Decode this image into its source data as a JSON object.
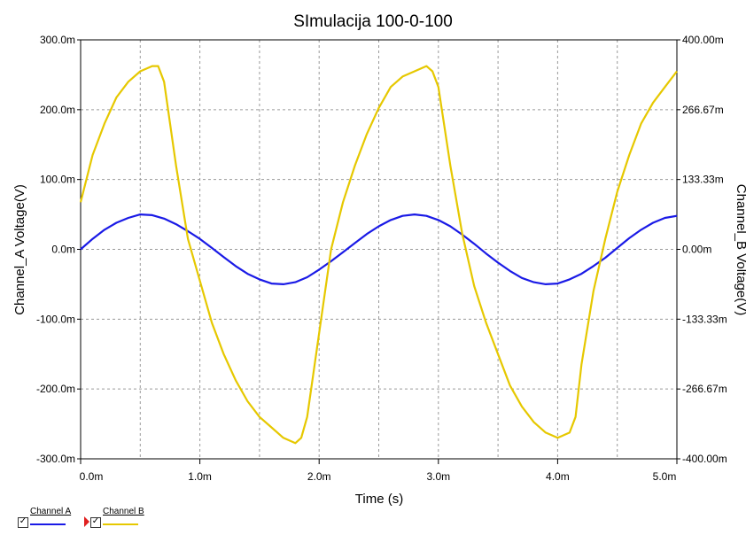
{
  "chart_data": {
    "type": "line",
    "title": "SImulacija 100-0-100",
    "xlabel": "Time (s)",
    "ylabel_left": "Channel_A Voltage(V)",
    "ylabel_right": "Channel_B Voltage(V)",
    "xlim": [
      0,
      0.005
    ],
    "ylim_left": [
      -0.3,
      0.3
    ],
    "ylim_right": [
      -0.4,
      0.4
    ],
    "x_ticks": [
      "0.0m",
      "1.0m",
      "2.0m",
      "3.0m",
      "4.0m",
      "5.0m"
    ],
    "y_ticks_left": [
      "300.0m",
      "200.0m",
      "100.0m",
      "0.0m",
      "-100.0m",
      "-200.0m",
      "-300.0m"
    ],
    "y_ticks_right": [
      "400.00m",
      "266.67m",
      "133.33m",
      "0.00m",
      "-133.33m",
      "-266.67m",
      "-400.00m"
    ],
    "grid": true,
    "legend_position": "bottom-left",
    "series": [
      {
        "name": "Channel A",
        "axis": "left",
        "color": "#1a1ae6",
        "x": [
          0,
          0.0001,
          0.0002,
          0.0003,
          0.0004,
          0.0005,
          0.0006,
          0.0007,
          0.0008,
          0.0009,
          0.001,
          0.0011,
          0.0012,
          0.0013,
          0.0014,
          0.0015,
          0.0016,
          0.0017,
          0.0018,
          0.0019,
          0.002,
          0.0021,
          0.0022,
          0.0023,
          0.0024,
          0.0025,
          0.0026,
          0.0027,
          0.0028,
          0.0029,
          0.003,
          0.0031,
          0.0032,
          0.0033,
          0.0034,
          0.0035,
          0.0036,
          0.0037,
          0.0038,
          0.0039,
          0.004,
          0.0041,
          0.0042,
          0.0043,
          0.0044,
          0.0045,
          0.0046,
          0.0047,
          0.0048,
          0.0049,
          0.005
        ],
        "y": [
          0.0,
          0.015,
          0.028,
          0.038,
          0.045,
          0.05,
          0.049,
          0.044,
          0.036,
          0.026,
          0.015,
          0.002,
          -0.011,
          -0.024,
          -0.035,
          -0.043,
          -0.049,
          -0.05,
          -0.047,
          -0.04,
          -0.029,
          -0.017,
          -0.004,
          0.009,
          0.022,
          0.033,
          0.042,
          0.048,
          0.05,
          0.048,
          0.042,
          0.033,
          0.021,
          0.008,
          -0.006,
          -0.019,
          -0.031,
          -0.041,
          -0.047,
          -0.05,
          -0.049,
          -0.043,
          -0.035,
          -0.024,
          -0.012,
          0.002,
          0.016,
          0.028,
          0.038,
          0.045,
          0.048
        ]
      },
      {
        "name": "Channel B",
        "axis": "right",
        "color": "#e6c800",
        "x": [
          0,
          0.0001,
          0.0002,
          0.0003,
          0.0004,
          0.0005,
          0.0006,
          0.00065,
          0.0007,
          0.0008,
          0.0009,
          0.001,
          0.0011,
          0.0012,
          0.0013,
          0.0014,
          0.0015,
          0.0016,
          0.0017,
          0.0018,
          0.00185,
          0.0019,
          0.002,
          0.0021,
          0.0022,
          0.0023,
          0.0024,
          0.0025,
          0.0026,
          0.0027,
          0.0028,
          0.0029,
          0.00295,
          0.003,
          0.0031,
          0.0032,
          0.0033,
          0.0034,
          0.0035,
          0.0036,
          0.0037,
          0.0038,
          0.0039,
          0.004,
          0.0041,
          0.00415,
          0.0042,
          0.0043,
          0.0044,
          0.0045,
          0.0046,
          0.0047,
          0.0048,
          0.0049,
          0.005
        ],
        "y": [
          0.09,
          0.18,
          0.24,
          0.29,
          0.32,
          0.34,
          0.35,
          0.35,
          0.32,
          0.16,
          0.02,
          -0.06,
          -0.14,
          -0.2,
          -0.25,
          -0.29,
          -0.32,
          -0.34,
          -0.36,
          -0.37,
          -0.36,
          -0.32,
          -0.16,
          0.0,
          0.09,
          0.16,
          0.22,
          0.27,
          0.31,
          0.33,
          0.34,
          0.35,
          0.34,
          0.31,
          0.16,
          0.03,
          -0.07,
          -0.14,
          -0.2,
          -0.26,
          -0.3,
          -0.33,
          -0.35,
          -0.36,
          -0.35,
          -0.32,
          -0.22,
          -0.08,
          0.02,
          0.11,
          0.18,
          0.24,
          0.28,
          0.31,
          0.34
        ]
      }
    ]
  },
  "legend": {
    "channel_a_label": "Channel A",
    "channel_b_label": "Channel B",
    "check_mark": "✓"
  }
}
